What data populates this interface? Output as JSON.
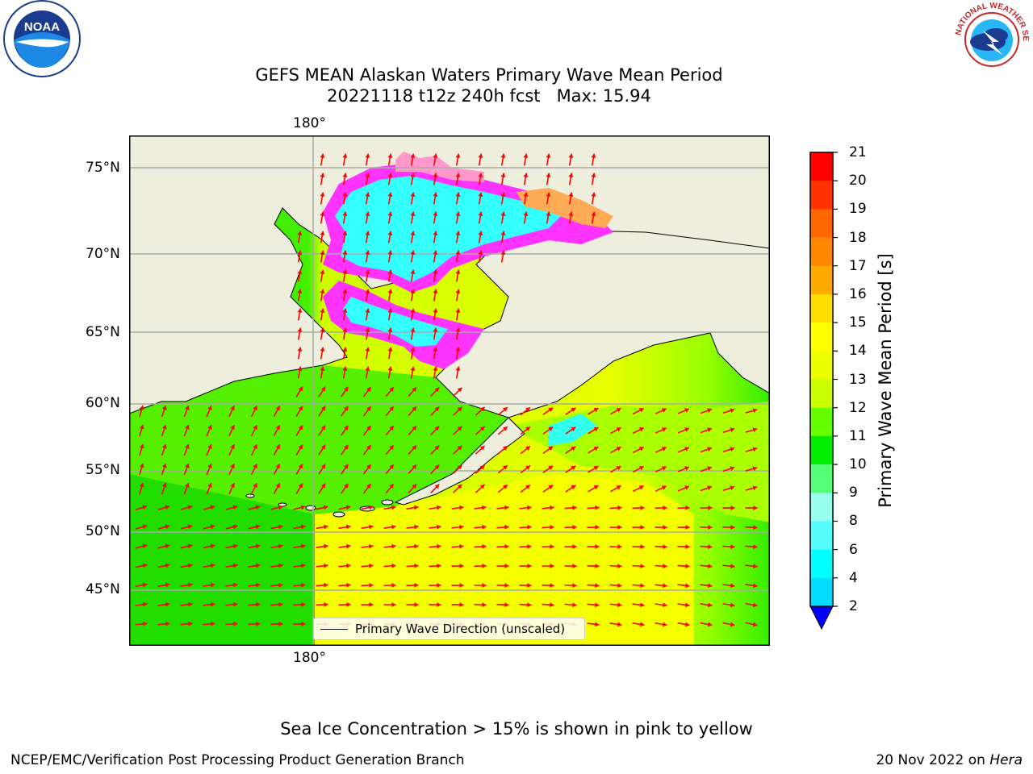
{
  "title_line1": "GEFS MEAN Alaskan Waters Primary Wave Mean Period",
  "title_line2": "20221118 t12z 240h fcst   Max: 15.94",
  "map": {
    "lon_labels": [
      "180°",
      "180°"
    ],
    "lat_labels": [
      "75°N",
      "70°N",
      "65°N",
      "60°N",
      "55°N",
      "50°N",
      "45°N"
    ],
    "colors": {
      "land": "#eeeedd",
      "arrow": "#ff0000",
      "ice_pink": "#ff00ff",
      "ice_cyan": "#33ffff",
      "grid": "#aaaaaa"
    },
    "legend": {
      "label": "Primary Wave Direction (unscaled)"
    }
  },
  "colorbar": {
    "title": "Primary Wave Mean Period [s]",
    "tick_labels": [
      "21",
      "20",
      "19",
      "18",
      "17",
      "16",
      "15",
      "14",
      "13",
      "12",
      "11",
      "10",
      "9",
      "8",
      "6",
      "4",
      "2"
    ],
    "colors": [
      "#ff0000",
      "#ff3300",
      "#ff6600",
      "#ff8800",
      "#ffaa00",
      "#ffdd00",
      "#ffff00",
      "#eeff00",
      "#ccff00",
      "#66ff00",
      "#00ee00",
      "#55ff77",
      "#99ffee",
      "#55ffff",
      "#00ffff",
      "#00ddff",
      "#0077ff"
    ],
    "extend_color": "#0000ff"
  },
  "caption": "Sea Ice Concentration > 15% is shown in pink to yellow",
  "footer": {
    "left": "NCEP/EMC/Verification Post Processing Product Generation Branch",
    "right_prefix": "20 Nov 2022 on ",
    "right_italic": "Hera"
  },
  "logos": {
    "noaa_text": "NOAA",
    "nws_text": "NATIONAL WEATHER SERVICE"
  }
}
